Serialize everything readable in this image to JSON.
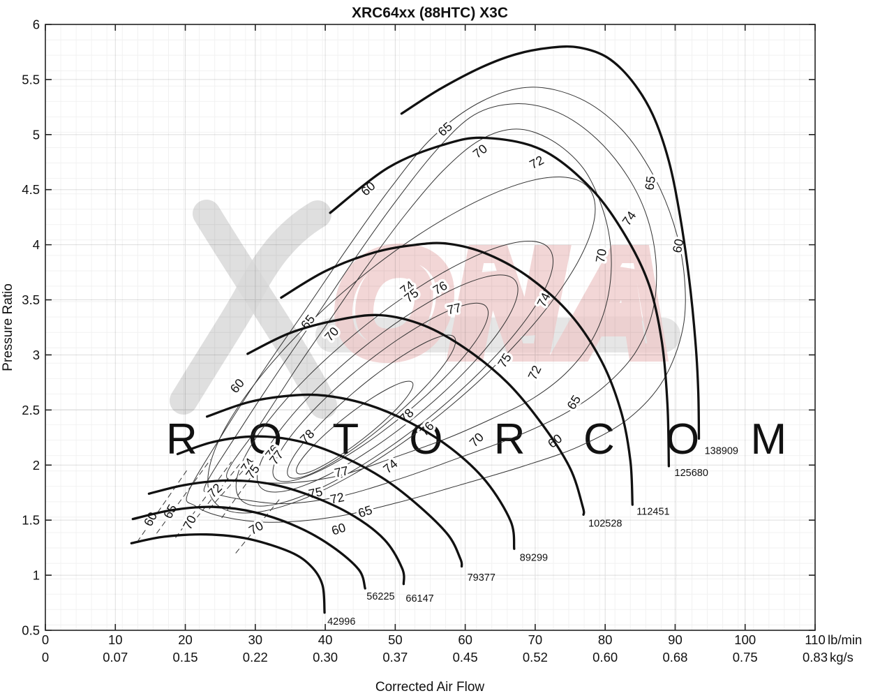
{
  "page": {
    "background": "#ffffff"
  },
  "colors": {
    "speed_line": "#111111",
    "contour_line": "#333333",
    "grid_minor": "rgba(0,0,0,0.055)",
    "grid_major": "rgba(0,0,0,0.13)",
    "axis": "#222222",
    "watermark_gray": "#d9d9d9",
    "watermark_band": "#e0e0e0",
    "watermark_pink": "#eec9c9",
    "watermark_text_gray": "#dcdcdc"
  },
  "chart_data": {
    "type": "contour",
    "title": "XRC64xx (88HTC) X3C",
    "xlabel": "Corrected Air Flow",
    "ylabel": "Pressure Ratio",
    "x_axis": {
      "primary_unit": "lb/min",
      "secondary_unit": "kg/s",
      "range_lb_min": [
        0,
        110
      ],
      "ticks_lb_min": [
        0,
        10,
        20,
        30,
        40,
        50,
        60,
        70,
        80,
        90,
        100,
        110
      ],
      "ticks_kg_s": [
        "0",
        "0.07",
        "0.15",
        "0.22",
        "0.30",
        "0.37",
        "0.45",
        "0.52",
        "0.60",
        "0.68",
        "0.75",
        "0.83"
      ]
    },
    "y_axis": {
      "range": [
        0.5,
        6
      ],
      "ticks": [
        0.5,
        1,
        1.5,
        2,
        2.5,
        3,
        3.5,
        4,
        4.5,
        5,
        5.5,
        6
      ]
    },
    "grid": {
      "minor": true,
      "major": true,
      "legend": "none"
    },
    "speed_lines": [
      {
        "rpm": 42996,
        "label_at": [
          40.3,
          0.55
        ],
        "points": [
          [
            12.3,
            1.29
          ],
          [
            17,
            1.35
          ],
          [
            23,
            1.37
          ],
          [
            29,
            1.33
          ],
          [
            35,
            1.21
          ],
          [
            38,
            1.08
          ],
          [
            39.6,
            0.91
          ],
          [
            39.9,
            0.66
          ]
        ]
      },
      {
        "rpm": 56225,
        "label_at": [
          45.9,
          0.78
        ],
        "points": [
          [
            12.5,
            1.51
          ],
          [
            18,
            1.59
          ],
          [
            24,
            1.62
          ],
          [
            30,
            1.57
          ],
          [
            36,
            1.44
          ],
          [
            41,
            1.26
          ],
          [
            44.8,
            1.05
          ],
          [
            45.7,
            0.88
          ]
        ]
      },
      {
        "rpm": 66147,
        "label_at": [
          51.5,
          0.76
        ],
        "points": [
          [
            14.8,
            1.74
          ],
          [
            20,
            1.82
          ],
          [
            26,
            1.86
          ],
          [
            32,
            1.83
          ],
          [
            38,
            1.72
          ],
          [
            44,
            1.54
          ],
          [
            48.5,
            1.32
          ],
          [
            51,
            1.06
          ],
          [
            51.2,
            0.92
          ]
        ]
      },
      {
        "rpm": 79377,
        "label_at": [
          60.3,
          0.95
        ],
        "points": [
          [
            18.9,
            2.1
          ],
          [
            24,
            2.21
          ],
          [
            30,
            2.26
          ],
          [
            36,
            2.22
          ],
          [
            42,
            2.09
          ],
          [
            48,
            1.89
          ],
          [
            53,
            1.65
          ],
          [
            57.5,
            1.37
          ],
          [
            59.3,
            1.15
          ],
          [
            59.5,
            1.08
          ]
        ]
      },
      {
        "rpm": 89299,
        "label_at": [
          67.8,
          1.13
        ],
        "points": [
          [
            23.1,
            2.44
          ],
          [
            29,
            2.57
          ],
          [
            35,
            2.63
          ],
          [
            40,
            2.63
          ],
          [
            46,
            2.55
          ],
          [
            52,
            2.39
          ],
          [
            58,
            2.15
          ],
          [
            63,
            1.85
          ],
          [
            66.5,
            1.49
          ],
          [
            67,
            1.24
          ]
        ]
      },
      {
        "rpm": 102528,
        "label_at": [
          77.6,
          1.44
        ],
        "points": [
          [
            28.9,
            3.01
          ],
          [
            35,
            3.2
          ],
          [
            42,
            3.32
          ],
          [
            48,
            3.36
          ],
          [
            54,
            3.27
          ],
          [
            60,
            3.06
          ],
          [
            66,
            2.75
          ],
          [
            71,
            2.37
          ],
          [
            75,
            1.97
          ],
          [
            76.8,
            1.62
          ],
          [
            76.9,
            1.55
          ]
        ]
      },
      {
        "rpm": 112451,
        "label_at": [
          84.5,
          1.55
        ],
        "points": [
          [
            33.7,
            3.52
          ],
          [
            40,
            3.76
          ],
          [
            47,
            3.93
          ],
          [
            53,
            4.0
          ],
          [
            57.5,
            4.01
          ],
          [
            63,
            3.92
          ],
          [
            69,
            3.71
          ],
          [
            75,
            3.37
          ],
          [
            79.5,
            2.94
          ],
          [
            82.3,
            2.48
          ],
          [
            83.6,
            2.04
          ],
          [
            83.9,
            1.64
          ]
        ]
      },
      {
        "rpm": 125680,
        "label_at": [
          89.9,
          1.9
        ],
        "points": [
          [
            40.7,
            4.29
          ],
          [
            49,
            4.7
          ],
          [
            57,
            4.91
          ],
          [
            63,
            4.97
          ],
          [
            71,
            4.86
          ],
          [
            78,
            4.51
          ],
          [
            83,
            4.07
          ],
          [
            86.3,
            3.63
          ],
          [
            88.1,
            3.12
          ],
          [
            88.9,
            2.55
          ],
          [
            89.1,
            1.99
          ]
        ]
      },
      {
        "rpm": 138909,
        "label_at": [
          94.2,
          2.1
        ],
        "points": [
          [
            50.9,
            5.19
          ],
          [
            56.3,
            5.41
          ],
          [
            62.3,
            5.61
          ],
          [
            67.3,
            5.73
          ],
          [
            72.3,
            5.79
          ],
          [
            76.3,
            5.79
          ],
          [
            80.3,
            5.7
          ],
          [
            83.8,
            5.49
          ],
          [
            86.8,
            5.18
          ],
          [
            89.1,
            4.76
          ],
          [
            90.7,
            4.26
          ],
          [
            92,
            3.69
          ],
          [
            92.9,
            3.12
          ],
          [
            93.3,
            2.68
          ],
          [
            93.4,
            2.24
          ]
        ]
      }
    ],
    "efficiency": {
      "levels": [
        60,
        65,
        70,
        72,
        74,
        75,
        76,
        77,
        78
      ],
      "outer_loops": [
        {
          "level": 60,
          "points": [
            [
              20.4,
              1.75
            ],
            [
              25.4,
              2.29
            ],
            [
              31.4,
              2.88
            ],
            [
              37.4,
              3.43
            ],
            [
              43.4,
              3.99
            ],
            [
              49.4,
              4.52
            ],
            [
              55.4,
              4.98
            ],
            [
              62.3,
              5.3
            ],
            [
              69.3,
              5.43
            ],
            [
              76.3,
              5.33
            ],
            [
              82.3,
              5.05
            ],
            [
              86.8,
              4.64
            ],
            [
              89.8,
              4.19
            ],
            [
              91.3,
              3.72
            ],
            [
              91.1,
              3.24
            ],
            [
              88.3,
              2.77
            ],
            [
              83.3,
              2.42
            ],
            [
              76.3,
              2.17
            ],
            [
              68.3,
              1.99
            ],
            [
              59.3,
              1.82
            ],
            [
              50.4,
              1.66
            ],
            [
              41.4,
              1.53
            ],
            [
              32.4,
              1.48
            ],
            [
              25.4,
              1.53
            ],
            [
              21.4,
              1.63
            ]
          ]
        },
        {
          "level": 65,
          "points": [
            [
              22.9,
              1.82
            ],
            [
              27.9,
              2.33
            ],
            [
              33.4,
              2.86
            ],
            [
              38.9,
              3.37
            ],
            [
              44.4,
              3.89
            ],
            [
              49.9,
              4.38
            ],
            [
              55.9,
              4.86
            ],
            [
              61.3,
              5.18
            ],
            [
              67.3,
              5.28
            ],
            [
              73.3,
              5.2
            ],
            [
              78.8,
              4.96
            ],
            [
              83.3,
              4.61
            ],
            [
              86.1,
              4.23
            ],
            [
              87.3,
              3.81
            ],
            [
              86.8,
              3.4
            ],
            [
              84.3,
              3.02
            ],
            [
              79.8,
              2.71
            ],
            [
              74.3,
              2.47
            ],
            [
              67.3,
              2.26
            ],
            [
              59.3,
              2.07
            ],
            [
              50.9,
              1.88
            ],
            [
              42.4,
              1.72
            ],
            [
              34.4,
              1.65
            ],
            [
              27.9,
              1.69
            ],
            [
              23.9,
              1.75
            ]
          ]
        },
        {
          "level": 70,
          "points": [
            [
              25.9,
              1.91
            ],
            [
              30.9,
              2.39
            ],
            [
              35.9,
              2.88
            ],
            [
              40.9,
              3.34
            ],
            [
              45.9,
              3.8
            ],
            [
              51.4,
              4.27
            ],
            [
              56.8,
              4.67
            ],
            [
              62.1,
              4.95
            ],
            [
              67.3,
              5.05
            ],
            [
              72.3,
              4.95
            ],
            [
              76.8,
              4.7
            ],
            [
              79.5,
              4.35
            ],
            [
              80.8,
              3.97
            ],
            [
              80.5,
              3.56
            ],
            [
              78.5,
              3.18
            ],
            [
              74.8,
              2.86
            ],
            [
              69.8,
              2.61
            ],
            [
              63.8,
              2.42
            ],
            [
              57.3,
              2.24
            ],
            [
              49.9,
              2.07
            ],
            [
              42.4,
              1.91
            ],
            [
              35.4,
              1.84
            ],
            [
              29.9,
              1.85
            ]
          ]
        }
      ],
      "inner_loops": [
        {
          "level": 72,
          "center": [
            50.9,
            3.09
          ],
          "a": 350,
          "b": 112,
          "rot": -40
        },
        {
          "level": 74,
          "center": [
            49.9,
            2.83
          ],
          "a": 285,
          "b": 80,
          "rot": -39
        },
        {
          "level": 75,
          "center": [
            48.9,
            2.74
          ],
          "a": 235,
          "b": 62,
          "rot": -39
        },
        {
          "level": 76,
          "center": [
            47.9,
            2.66
          ],
          "a": 195,
          "b": 46,
          "rot": -39
        },
        {
          "level": 77,
          "center": [
            46.6,
            2.53
          ],
          "a": 155,
          "b": 32,
          "rot": -40
        },
        {
          "level": 78,
          "center": [
            44.2,
            2.34
          ],
          "a": 105,
          "b": 20,
          "rot": -38
        }
      ],
      "surge_dashes": [
        {
          "level": 60,
          "from": [
            13.1,
            1.3
          ],
          "to": [
            20.2,
            1.95
          ]
        },
        {
          "level": 65,
          "from": [
            15.9,
            1.38
          ],
          "to": [
            23.6,
            2.05
          ]
        },
        {
          "level": 70,
          "from": [
            18.6,
            1.34
          ],
          "to": [
            26.6,
            2.03
          ]
        },
        {
          "level": 72,
          "from": [
            21.6,
            1.52
          ],
          "to": [
            27.8,
            2.01
          ]
        },
        {
          "level": 74,
          "from": [
            23.4,
            1.6
          ],
          "to": [
            28.4,
            1.96
          ]
        },
        {
          "level": 75,
          "from": [
            25.2,
            1.52
          ],
          "to": [
            29.6,
            1.91
          ]
        },
        {
          "level": 70,
          "from": [
            27.2,
            1.2
          ],
          "to": [
            33.6,
            1.7
          ]
        }
      ],
      "labels": [
        [
          60,
          46.1,
          4.51,
          -42
        ],
        [
          65,
          57.1,
          5.05,
          -42
        ],
        [
          70,
          62.1,
          4.85,
          -38
        ],
        [
          72,
          70.2,
          4.75,
          -28
        ],
        [
          65,
          86.4,
          4.56,
          -82
        ],
        [
          60,
          90.4,
          3.99,
          -78
        ],
        [
          70,
          79.4,
          3.9,
          -80
        ],
        [
          74,
          83.4,
          4.24,
          -55
        ],
        [
          74,
          51.7,
          3.61,
          -38
        ],
        [
          75,
          52.3,
          3.54,
          -38
        ],
        [
          76,
          56.4,
          3.61,
          -30
        ],
        [
          77,
          58.4,
          3.42,
          -12
        ],
        [
          74,
          71.2,
          3.5,
          -64
        ],
        [
          75,
          65.6,
          2.95,
          -58
        ],
        [
          72,
          69.9,
          2.84,
          -64
        ],
        [
          65,
          75.5,
          2.57,
          -58
        ],
        [
          60,
          72.8,
          2.22,
          -38
        ],
        [
          78,
          51.6,
          2.45,
          -45
        ],
        [
          76,
          54.5,
          2.33,
          -48
        ],
        [
          70,
          61.6,
          2.23,
          -45
        ],
        [
          74,
          49.3,
          1.99,
          -40
        ],
        [
          78,
          37.4,
          2.26,
          -45
        ],
        [
          76,
          32.4,
          2.12,
          -52
        ],
        [
          77,
          33.0,
          2.07,
          -52
        ],
        [
          74,
          28.9,
          2.0,
          -55
        ],
        [
          75,
          29.6,
          1.94,
          -55
        ],
        [
          72,
          24.2,
          1.77,
          -45
        ],
        [
          77,
          42.3,
          1.94,
          -12
        ],
        [
          75,
          38.6,
          1.75,
          -12
        ],
        [
          72,
          41.7,
          1.7,
          -12
        ],
        [
          65,
          45.7,
          1.58,
          -18
        ],
        [
          60,
          41.9,
          1.42,
          -18
        ],
        [
          70,
          30.1,
          1.43,
          -30
        ],
        [
          60,
          15.0,
          1.51,
          -62
        ],
        [
          65,
          17.8,
          1.58,
          -62
        ],
        [
          70,
          20.6,
          1.48,
          -62
        ],
        [
          60,
          27.4,
          2.72,
          -50
        ],
        [
          65,
          37.5,
          3.3,
          -52
        ],
        [
          70,
          40.9,
          3.19,
          -48
        ]
      ]
    },
    "watermark": {
      "brand_letters": "ONA",
      "tagline_left": "R O T O R",
      "tagline_right": "C O M"
    }
  }
}
